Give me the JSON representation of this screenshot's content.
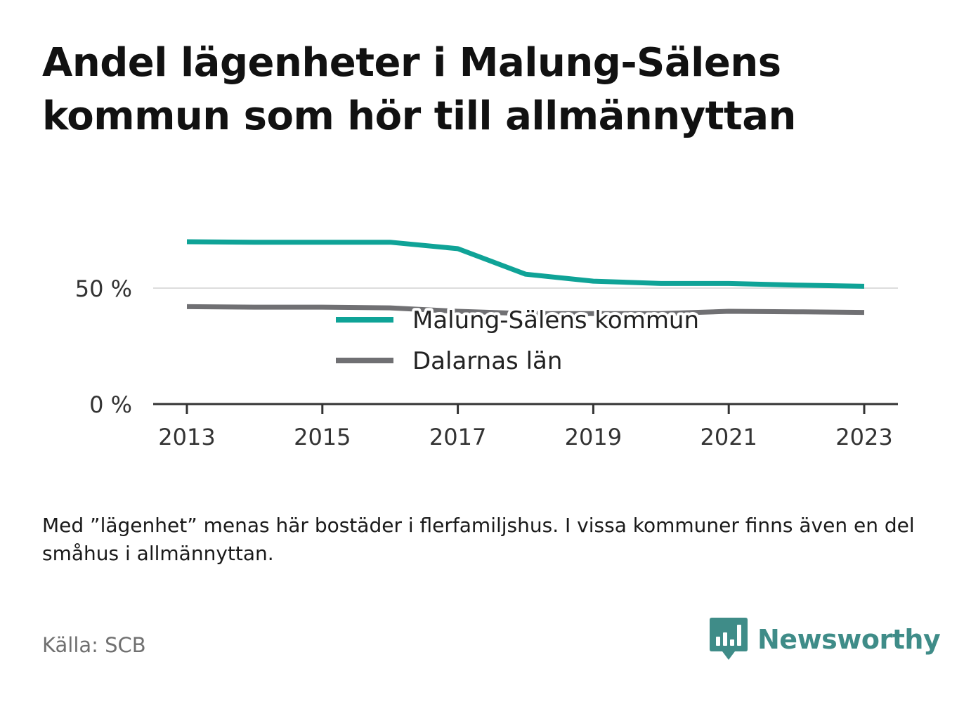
{
  "title": "Andel lägenheter i Malung-Sälens kommun som hör till allmännyttan",
  "note": "Med ”lägenhet” menas här bostäder i flerfamiljshus. I vissa kommuner finns även en del småhus i allmännyttan.",
  "source": "Källa: SCB",
  "brand": {
    "name": "Newsworthy",
    "icon": "bar-chart-speech-bubble-icon",
    "color": "#3f8c88"
  },
  "chart_data": {
    "type": "line",
    "title": "Andel lägenheter i Malung-Sälens kommun som hör till allmännyttan",
    "x": [
      2013,
      2014,
      2015,
      2016,
      2017,
      2018,
      2019,
      2020,
      2021,
      2022,
      2023
    ],
    "x_ticks": [
      "2013",
      "2015",
      "2017",
      "2019",
      "2021",
      "2023"
    ],
    "y_ticks": [
      "0 %",
      "50 %"
    ],
    "y_tick_values": [
      0,
      50
    ],
    "ylim": [
      0,
      75
    ],
    "xlabel": "",
    "ylabel": "",
    "grid": true,
    "legend_position": "center",
    "series": [
      {
        "name": "Malung-Sälens kommun",
        "color": "#0fa397",
        "values": [
          70,
          69.8,
          69.8,
          69.8,
          67,
          56,
          53,
          52,
          52,
          51.3,
          50.8
        ]
      },
      {
        "name": "Dalarnas län",
        "color": "#707073",
        "values": [
          42,
          41.8,
          41.8,
          41.5,
          40,
          39,
          39,
          39,
          40,
          39.8,
          39.5
        ]
      }
    ]
  }
}
